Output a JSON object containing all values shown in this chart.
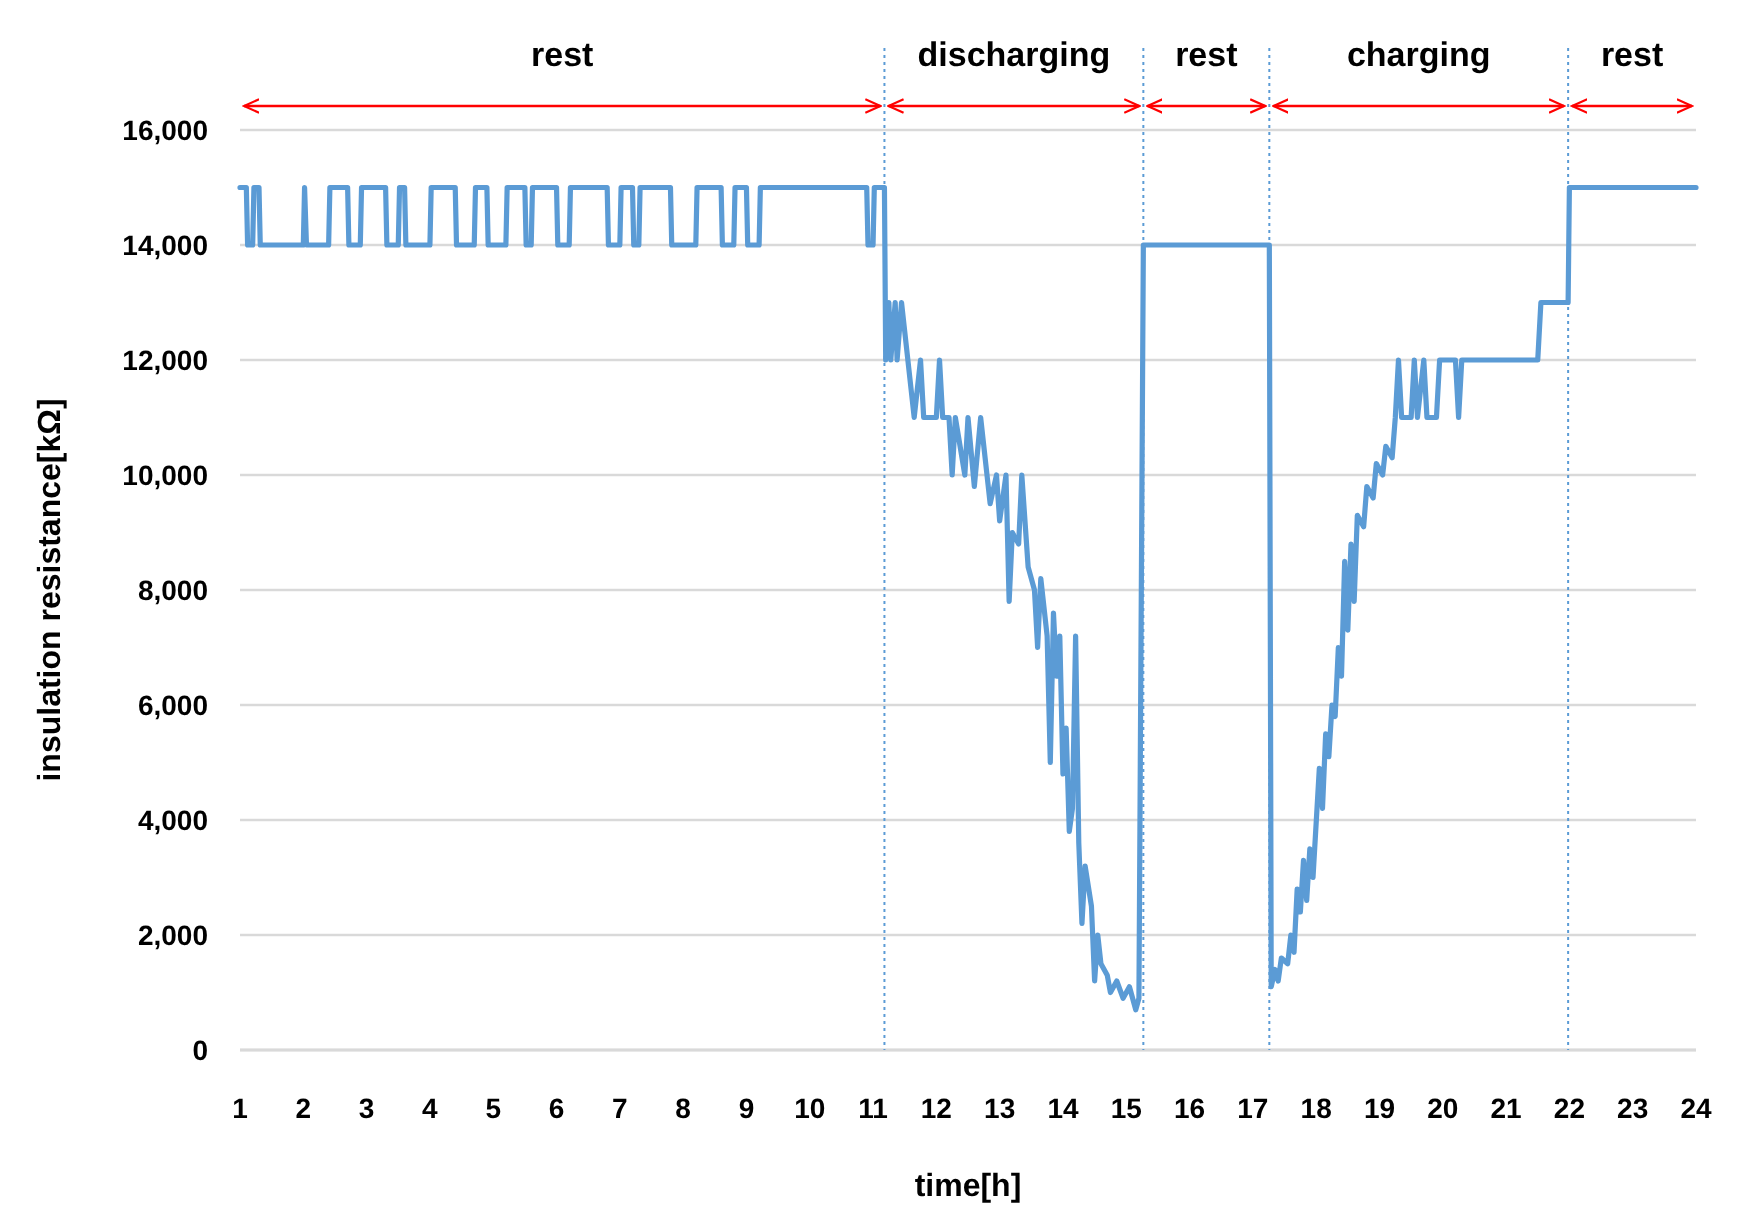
{
  "chart_data": {
    "type": "line",
    "xlabel": "time[h]",
    "ylabel": "insulation resistance[kΩ]",
    "xlim": [
      1,
      24
    ],
    "xticks": [
      1,
      2,
      3,
      4,
      5,
      6,
      7,
      8,
      9,
      10,
      11,
      12,
      13,
      14,
      15,
      16,
      17,
      18,
      19,
      20,
      21,
      22,
      23,
      24
    ],
    "ylim": [
      0,
      16000
    ],
    "yticks": [
      {
        "value": 0,
        "label": "0"
      },
      {
        "value": 2000,
        "label": "2,000"
      },
      {
        "value": 4000,
        "label": "4,000"
      },
      {
        "value": 6000,
        "label": "6,000"
      },
      {
        "value": 8000,
        "label": "8,000"
      },
      {
        "value": 10000,
        "label": "10,000"
      },
      {
        "value": 12000,
        "label": "12,000"
      },
      {
        "value": 14000,
        "label": "14,000"
      },
      {
        "value": 16000,
        "label": "16,000"
      }
    ],
    "grid": "y",
    "marker": "none",
    "line_style": "solid",
    "series": [
      {
        "color": "#5b9bd5",
        "x": [
          1,
          1.1,
          1.12,
          1.2,
          1.22,
          1.3,
          1.32,
          2.0,
          2.02,
          2.05,
          2.4,
          2.42,
          2.7,
          2.72,
          2.9,
          2.92,
          3.3,
          3.32,
          3.5,
          3.52,
          3.6,
          3.62,
          4.0,
          4.02,
          4.4,
          4.42,
          4.7,
          4.72,
          4.9,
          4.92,
          5.2,
          5.22,
          5.5,
          5.52,
          5.6,
          5.62,
          6.0,
          6.02,
          6.2,
          6.22,
          6.8,
          6.82,
          7.0,
          7.02,
          7.2,
          7.22,
          7.3,
          7.32,
          7.8,
          7.82,
          8.2,
          8.22,
          8.6,
          8.62,
          8.8,
          8.82,
          9.0,
          9.02,
          9.2,
          9.22,
          10.9,
          10.92,
          11.0,
          11.02,
          11.18,
          11.2,
          11.25,
          11.28,
          11.35,
          11.38,
          11.45,
          11.55,
          11.65,
          11.75,
          11.8,
          12.0,
          12.05,
          12.1,
          12.2,
          12.25,
          12.3,
          12.45,
          12.5,
          12.6,
          12.7,
          12.8,
          12.85,
          12.95,
          13.0,
          13.1,
          13.15,
          13.2,
          13.3,
          13.35,
          13.45,
          13.55,
          13.6,
          13.65,
          13.75,
          13.8,
          13.85,
          13.9,
          13.95,
          14.0,
          14.05,
          14.1,
          14.15,
          14.2,
          14.25,
          14.3,
          14.35,
          14.45,
          14.5,
          14.55,
          14.6,
          14.7,
          14.75,
          14.85,
          14.95,
          15.05,
          15.15,
          15.2,
          15.27,
          17.26,
          17.29,
          17.35,
          17.4,
          17.45,
          17.55,
          17.6,
          17.65,
          17.7,
          17.75,
          17.8,
          17.85,
          17.9,
          17.95,
          18.05,
          18.1,
          18.15,
          18.2,
          18.25,
          18.3,
          18.35,
          18.4,
          18.45,
          18.5,
          18.55,
          18.6,
          18.65,
          18.75,
          18.8,
          18.9,
          18.95,
          19.05,
          19.1,
          19.2,
          19.25,
          19.3,
          19.35,
          19.5,
          19.55,
          19.6,
          19.7,
          19.75,
          19.9,
          19.95,
          20.2,
          20.25,
          20.3,
          21.5,
          21.55,
          21.98,
          22.0,
          24
        ],
        "values": [
          15000,
          15000,
          14000,
          14000,
          15000,
          15000,
          14000,
          14000,
          15000,
          14000,
          14000,
          15000,
          15000,
          14000,
          14000,
          15000,
          15000,
          14000,
          14000,
          15000,
          15000,
          14000,
          14000,
          15000,
          15000,
          14000,
          14000,
          15000,
          15000,
          14000,
          14000,
          15000,
          15000,
          14000,
          14000,
          15000,
          15000,
          14000,
          14000,
          15000,
          15000,
          14000,
          14000,
          15000,
          15000,
          14000,
          14000,
          15000,
          15000,
          14000,
          14000,
          15000,
          15000,
          14000,
          14000,
          15000,
          15000,
          14000,
          14000,
          15000,
          15000,
          14000,
          14000,
          15000,
          15000,
          12000,
          13000,
          12000,
          13000,
          12000,
          13000,
          12000,
          11000,
          12000,
          11000,
          11000,
          12000,
          11000,
          11000,
          10000,
          11000,
          10000,
          11000,
          9800,
          11000,
          10000,
          9500,
          10000,
          9200,
          10000,
          7800,
          9000,
          8800,
          10000,
          8400,
          8000,
          7000,
          8200,
          7200,
          5000,
          7600,
          6500,
          7200,
          4800,
          5600,
          3800,
          4200,
          7200,
          3600,
          2200,
          3200,
          2500,
          1200,
          2000,
          1500,
          1300,
          1000,
          1200,
          900,
          1100,
          700,
          900,
          14000,
          14000,
          1100,
          1400,
          1200,
          1600,
          1500,
          2000,
          1700,
          2800,
          2400,
          3300,
          2600,
          3500,
          3000,
          4900,
          4200,
          5500,
          5100,
          6000,
          5800,
          7000,
          6500,
          8500,
          7300,
          8800,
          7800,
          9300,
          9100,
          9800,
          9600,
          10200,
          10000,
          10500,
          10300,
          11000,
          12000,
          11000,
          11000,
          12000,
          11000,
          12000,
          11000,
          11000,
          12000,
          12000,
          11000,
          12000,
          12000,
          13000,
          13000,
          15000,
          15000
        ]
      }
    ],
    "ref_lines": [
      {
        "axis": "x",
        "value": 11.18,
        "color": "#5b9bd5",
        "line_style": "dotted"
      },
      {
        "axis": "x",
        "value": 15.27,
        "color": "#5b9bd5",
        "line_style": "dotted"
      },
      {
        "axis": "x",
        "value": 17.26,
        "color": "#5b9bd5",
        "line_style": "dotted"
      },
      {
        "axis": "x",
        "value": 21.98,
        "color": "#5b9bd5",
        "line_style": "dotted"
      }
    ],
    "annotations": [
      "rest",
      "discharging",
      "rest",
      "charging",
      "rest"
    ]
  }
}
